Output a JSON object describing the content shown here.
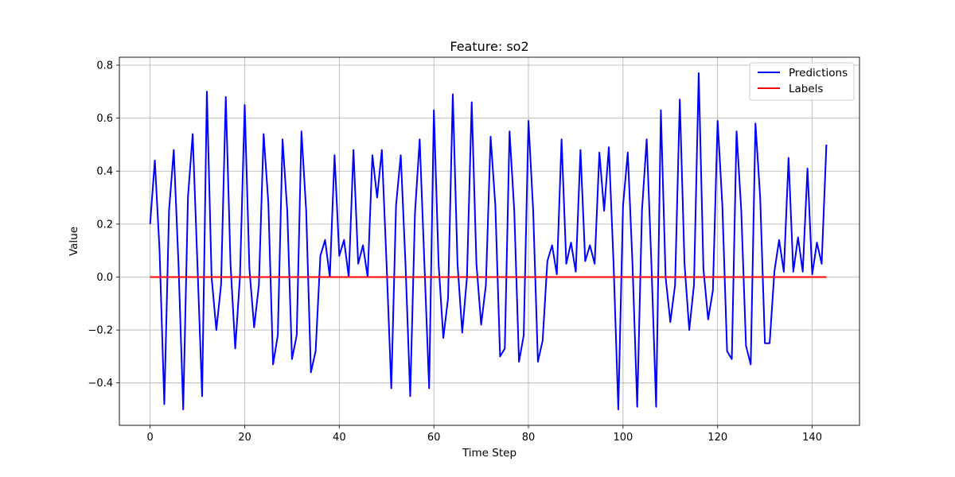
{
  "chart_data": {
    "type": "line",
    "title": "Feature: so2",
    "xlabel": "Time Step",
    "ylabel": "Value",
    "xlim": [
      -6.5,
      150
    ],
    "ylim": [
      -0.56,
      0.83
    ],
    "x_ticks": [
      0,
      20,
      40,
      60,
      80,
      100,
      120,
      140
    ],
    "y_ticks": [
      -0.4,
      -0.2,
      0.0,
      0.2,
      0.4,
      0.6,
      0.8
    ],
    "y_tick_labels": [
      "−0.4",
      "−0.2",
      "0.0",
      "0.2",
      "0.4",
      "0.6",
      "0.8"
    ],
    "grid": true,
    "legend_position": "top-right",
    "series": [
      {
        "name": "Predictions",
        "color": "#0000ff",
        "x_start": 0,
        "values": [
          0.2,
          0.44,
          0.1,
          -0.48,
          0.25,
          0.48,
          0.05,
          -0.5,
          0.3,
          0.54,
          0.05,
          -0.45,
          0.7,
          0.0,
          -0.2,
          -0.03,
          0.68,
          0.05,
          -0.27,
          0.0,
          0.65,
          0.03,
          -0.19,
          -0.03,
          0.54,
          0.28,
          -0.33,
          -0.22,
          0.52,
          0.25,
          -0.31,
          -0.22,
          0.55,
          0.25,
          -0.36,
          -0.28,
          0.08,
          0.14,
          0.0,
          0.46,
          0.08,
          0.14,
          0.0,
          0.48,
          0.05,
          0.12,
          0.0,
          0.46,
          0.3,
          0.48,
          0.05,
          -0.42,
          0.27,
          0.46,
          0.05,
          -0.45,
          0.24,
          0.52,
          0.05,
          -0.42,
          0.63,
          0.05,
          -0.23,
          -0.08,
          0.69,
          0.05,
          -0.21,
          0.0,
          0.66,
          0.05,
          -0.18,
          -0.03,
          0.53,
          0.27,
          -0.3,
          -0.27,
          0.55,
          0.25,
          -0.32,
          -0.22,
          0.59,
          0.25,
          -0.32,
          -0.24,
          0.06,
          0.12,
          0.01,
          0.52,
          0.05,
          0.13,
          0.02,
          0.48,
          0.06,
          0.12,
          0.05,
          0.47,
          0.25,
          0.49,
          0.05,
          -0.5,
          0.27,
          0.47,
          0.05,
          -0.49,
          0.25,
          0.52,
          0.05,
          -0.49,
          0.63,
          0.0,
          -0.17,
          -0.03,
          0.67,
          0.05,
          -0.2,
          -0.03,
          0.77,
          0.03,
          -0.16,
          -0.05,
          0.59,
          0.27,
          -0.28,
          -0.31,
          0.55,
          0.25,
          -0.26,
          -0.33,
          0.58,
          0.3,
          -0.25,
          -0.25,
          0.02,
          0.14,
          0.02,
          0.45,
          0.02,
          0.15,
          0.02,
          0.41,
          0.01,
          0.13,
          0.05,
          0.5
        ]
      },
      {
        "name": "Labels",
        "color": "#ff0000",
        "x": [
          0,
          143
        ],
        "values": [
          0.0,
          0.0
        ]
      }
    ]
  }
}
